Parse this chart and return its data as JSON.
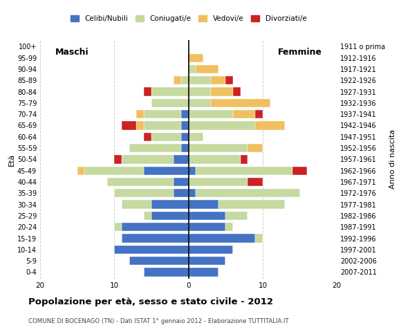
{
  "age_groups": [
    "0-4",
    "5-9",
    "10-14",
    "15-19",
    "20-24",
    "25-29",
    "30-34",
    "35-39",
    "40-44",
    "45-49",
    "50-54",
    "55-59",
    "60-64",
    "65-69",
    "70-74",
    "75-79",
    "80-84",
    "85-89",
    "90-94",
    "95-99",
    "100+"
  ],
  "birth_years": [
    "2007-2011",
    "2002-2006",
    "1997-2001",
    "1992-1996",
    "1987-1991",
    "1982-1986",
    "1977-1981",
    "1972-1976",
    "1967-1971",
    "1962-1966",
    "1957-1961",
    "1952-1956",
    "1947-1951",
    "1942-1946",
    "1937-1941",
    "1932-1936",
    "1927-1931",
    "1922-1926",
    "1917-1921",
    "1912-1916",
    "1911 o prima"
  ],
  "males": {
    "celibi": [
      6,
      8,
      10,
      9,
      9,
      5,
      5,
      2,
      2,
      6,
      2,
      1,
      1,
      1,
      1,
      0,
      0,
      0,
      0,
      0,
      0
    ],
    "coniugati": [
      0,
      0,
      0,
      0,
      1,
      1,
      4,
      8,
      9,
      8,
      7,
      7,
      4,
      5,
      5,
      5,
      5,
      1,
      0,
      0,
      0
    ],
    "vedovi": [
      0,
      0,
      0,
      0,
      0,
      0,
      0,
      0,
      0,
      1,
      0,
      0,
      0,
      1,
      1,
      0,
      0,
      1,
      0,
      0,
      0
    ],
    "divorziati": [
      0,
      0,
      0,
      0,
      0,
      0,
      0,
      0,
      0,
      0,
      1,
      0,
      1,
      2,
      0,
      0,
      1,
      0,
      0,
      0,
      0
    ]
  },
  "females": {
    "celibi": [
      4,
      5,
      6,
      9,
      5,
      5,
      4,
      1,
      0,
      1,
      0,
      0,
      0,
      0,
      0,
      0,
      0,
      0,
      0,
      0,
      0
    ],
    "coniugati": [
      0,
      0,
      0,
      1,
      1,
      3,
      9,
      14,
      8,
      13,
      7,
      8,
      2,
      9,
      6,
      3,
      3,
      3,
      1,
      0,
      0
    ],
    "vedovi": [
      0,
      0,
      0,
      0,
      0,
      0,
      0,
      0,
      0,
      0,
      0,
      2,
      0,
      4,
      3,
      8,
      3,
      2,
      3,
      2,
      0
    ],
    "divorziati": [
      0,
      0,
      0,
      0,
      0,
      0,
      0,
      0,
      2,
      2,
      1,
      0,
      0,
      0,
      1,
      0,
      1,
      1,
      0,
      0,
      0
    ]
  },
  "colors": {
    "celibi": "#4472c4",
    "coniugati": "#c5d9a0",
    "vedovi": "#f0c060",
    "divorziati": "#cc2222"
  },
  "xlim": 20,
  "title": "Popolazione per età, sesso e stato civile - 2012",
  "subtitle": "COMUNE DI BOCENAGO (TN) - Dati ISTAT 1° gennaio 2012 - Elaborazione TUTTITALIA.IT",
  "ylabel_left": "Età",
  "ylabel_right": "Anno di nascita",
  "label_maschi": "Maschi",
  "label_femmine": "Femmine",
  "legend_labels": [
    "Celibi/Nubili",
    "Coniugati/e",
    "Vedovi/e",
    "Divorziati/e"
  ],
  "bg_color": "#ffffff",
  "grid_color": "#cccccc"
}
